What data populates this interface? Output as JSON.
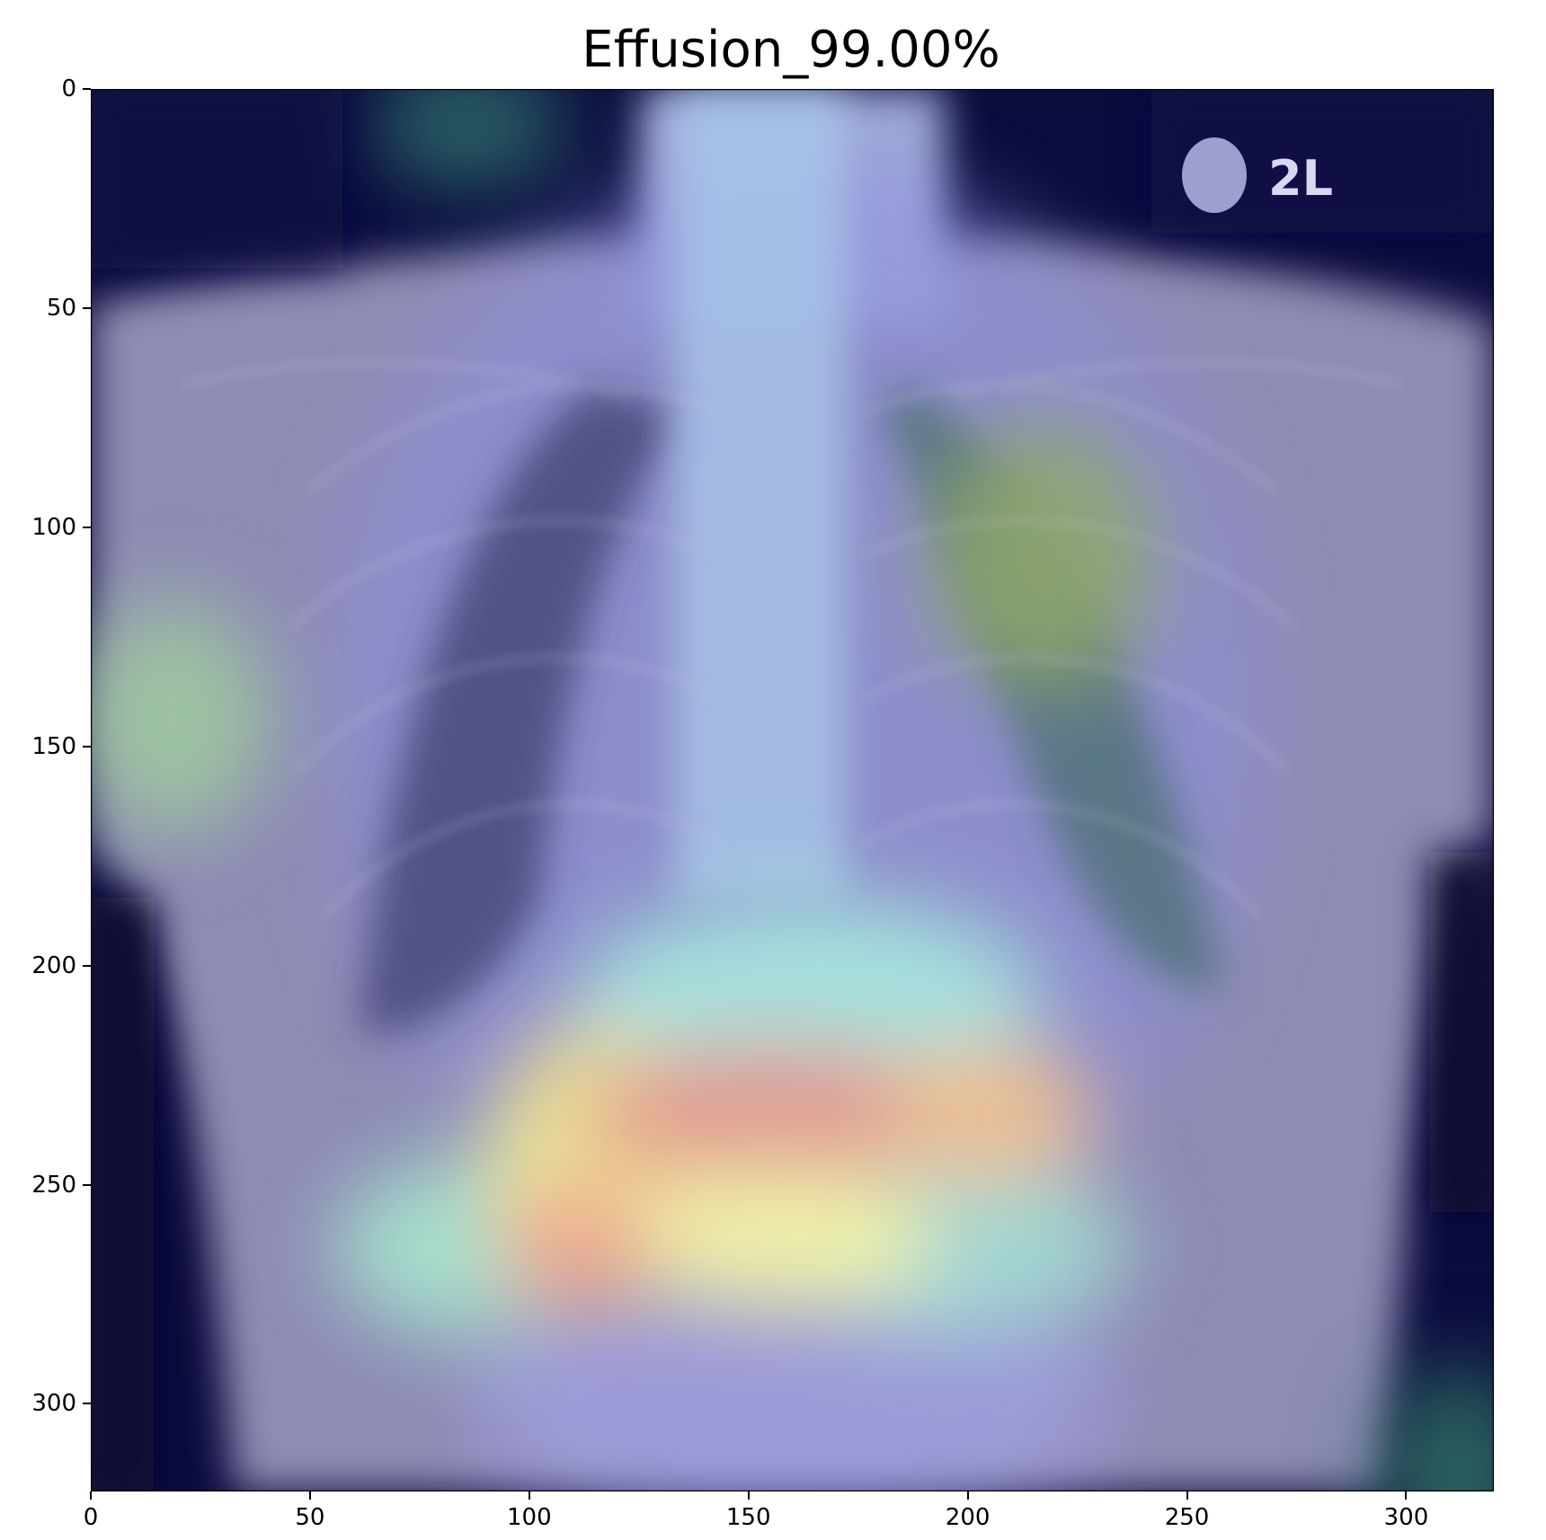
{
  "title": "Effusion_99.00%",
  "plot": {
    "x_ticks": [
      "0",
      "50",
      "100",
      "150",
      "200",
      "250",
      "300"
    ],
    "y_ticks": [
      "0",
      "50",
      "100",
      "150",
      "200",
      "250",
      "300"
    ],
    "x_tick_values": [
      0,
      50,
      100,
      150,
      200,
      250,
      300
    ],
    "y_tick_values": [
      0,
      50,
      100,
      150,
      200,
      250,
      300
    ],
    "xlim": [
      0,
      320
    ],
    "ylim": [
      320,
      0
    ],
    "colormap": "jet",
    "image": "chest-xray-with-heatmap-overlay",
    "marker_text": "2L",
    "colors": {
      "background_dark": "#0a0a3a",
      "overlay_blue": "#3a3aa0",
      "hot_red": "#d48080",
      "hot_yellow": "#f0e070",
      "cyan": "#a0e0e0"
    }
  }
}
